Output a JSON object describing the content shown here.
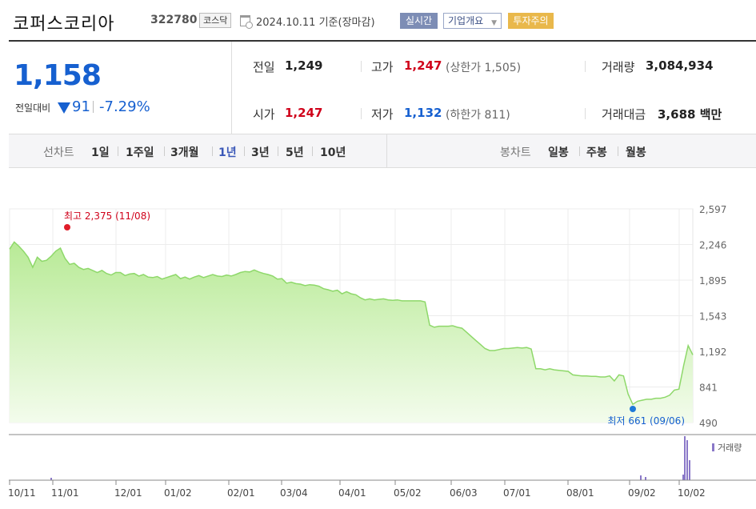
{
  "header": {
    "name": "코퍼스코리아",
    "code": "322780",
    "market": "코스닥",
    "date": "2024.10.11",
    "date_suffix": "기준(장마감)",
    "realtime_label": "실시간",
    "company_label": "기업개요",
    "warning_label": "투자주의"
  },
  "summary": {
    "price": "1,158",
    "change_label": "전일대비",
    "change": "91",
    "change_rate": "-7.29%",
    "prev_label": "전일",
    "prev": "1,249",
    "open_label": "시가",
    "open": "1,247",
    "high_label": "고가",
    "high": "1,247",
    "upper_limit": "(상한가 1,505)",
    "low_label": "저가",
    "low": "1,132",
    "lower_limit": "(하한가 811)",
    "volume_label": "거래량",
    "volume": "3,084,934",
    "amount_label": "거래대금",
    "amount": "3,688",
    "amount_unit": "백만"
  },
  "periods": {
    "line_label": "선차트",
    "line": [
      "1일",
      "1주일",
      "3개월",
      "1년",
      "3년",
      "5년",
      "10년"
    ],
    "active": "1년",
    "candle_label": "봉차트",
    "candle": [
      "일봉",
      "주봉",
      "월봉"
    ]
  },
  "colors": {
    "up": "#d0021b",
    "down": "#1660d0",
    "line": "#8ed86a"
  },
  "chart_data": {
    "type": "area",
    "yticks": [
      "2,597",
      "2,246",
      "1,895",
      "1,543",
      "1,192",
      "841",
      "490"
    ],
    "ylim": [
      490,
      2597
    ],
    "xticks": [
      "10/11",
      "11/01",
      "12/01",
      "01/02",
      "02/01",
      "03/04",
      "04/01",
      "05/02",
      "06/03",
      "07/01",
      "08/01",
      "09/02",
      "10/02"
    ],
    "high_label": "최고 2,375 (11/08)",
    "low_label": "최저 661 (09/06)",
    "volume_legend": "거래량",
    "series": [
      {
        "values": [
          2200,
          2270,
          2230,
          2180,
          2120,
          2020,
          2120,
          2080,
          2090,
          2130,
          2180,
          2210,
          2110,
          2050,
          2060,
          2020,
          2000,
          2010,
          1990,
          1970,
          1990,
          1960,
          1945,
          1970,
          1970,
          1940,
          1955,
          1960,
          1935,
          1950,
          1925,
          1920,
          1930,
          1905,
          1920,
          1935,
          1950,
          1910,
          1925,
          1905,
          1925,
          1940,
          1920,
          1935,
          1950,
          1935,
          1930,
          1945,
          1935,
          1950,
          1970,
          1980,
          1975,
          1995,
          1975,
          1960,
          1950,
          1935,
          1905,
          1910,
          1865,
          1875,
          1860,
          1855,
          1840,
          1850,
          1845,
          1835,
          1810,
          1800,
          1785,
          1795,
          1760,
          1780,
          1760,
          1750,
          1720,
          1700,
          1710,
          1700,
          1705,
          1710,
          1700,
          1695,
          1700,
          1690,
          1690,
          1690,
          1690,
          1690,
          1680,
          1450,
          1430,
          1440,
          1440,
          1440,
          1445,
          1430,
          1420,
          1380,
          1340,
          1300,
          1260,
          1220,
          1200,
          1200,
          1210,
          1220,
          1220,
          1225,
          1230,
          1225,
          1230,
          1215,
          1020,
          1020,
          1010,
          1020,
          1010,
          1005,
          1000,
          995,
          960,
          955,
          950,
          950,
          945,
          945,
          940,
          940,
          950,
          900,
          960,
          950,
          770,
          670,
          700,
          710,
          720,
          720,
          730,
          730,
          740,
          760,
          810,
          820,
          1050,
          1249,
          1158
        ]
      }
    ]
  }
}
